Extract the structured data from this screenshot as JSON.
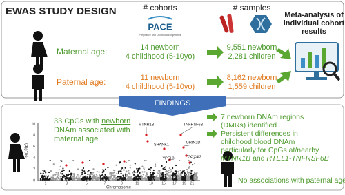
{
  "header": {
    "title": "EWAS STUDY DESIGN",
    "cohorts_heading": "# cohorts",
    "samples_heading": "# samples"
  },
  "logo": {
    "name": "PACE",
    "tagline": "Pregnancy and Childhood Epigenetics"
  },
  "rows": [
    {
      "label": "Maternal age:",
      "cohorts": [
        "14 newborn",
        "4 childhood (5-10yo)"
      ],
      "samples": [
        "9,551 newborn",
        "2,281 children"
      ]
    },
    {
      "label": "Paternal age:",
      "cohorts": [
        "11 newborn",
        "4 childhood (5-10yo)"
      ],
      "samples": [
        "8,162 newborn",
        "1,559 children"
      ]
    }
  ],
  "meta_analysis": [
    "Meta-analysis of",
    "individual cohort",
    "results"
  ],
  "findings": {
    "label": "FINDINGS",
    "summary": [
      "33 CpGs with ",
      "newborn",
      "DNAm associated with",
      "maternal age"
    ],
    "bullet_1": [
      "7 newborn DNAm regions",
      "(DMRs) identified"
    ],
    "bullet_2": [
      "Persistent differences in",
      "childhood",
      " blood DNAm",
      "particularly for CpGs at/nearby",
      "MTNR1B",
      " and ",
      "RTEL1-TNFRSF6B"
    ],
    "paternal": "No associations with paternal age"
  },
  "plot": {
    "y_label": "-log10(p)",
    "x_label": "Chromosome",
    "y_ticks": [
      "0",
      "2",
      "4",
      "6",
      "8",
      "10"
    ],
    "x_ticks": [
      "1",
      "3",
      "5",
      "7",
      "9",
      "11",
      "13",
      "15",
      "17",
      "19",
      "21"
    ],
    "genes": [
      "MTNR1B",
      "SHANK1",
      "YPEL3",
      "TNFRSF6B",
      "GRIN2D",
      "COX4I2"
    ]
  }
}
